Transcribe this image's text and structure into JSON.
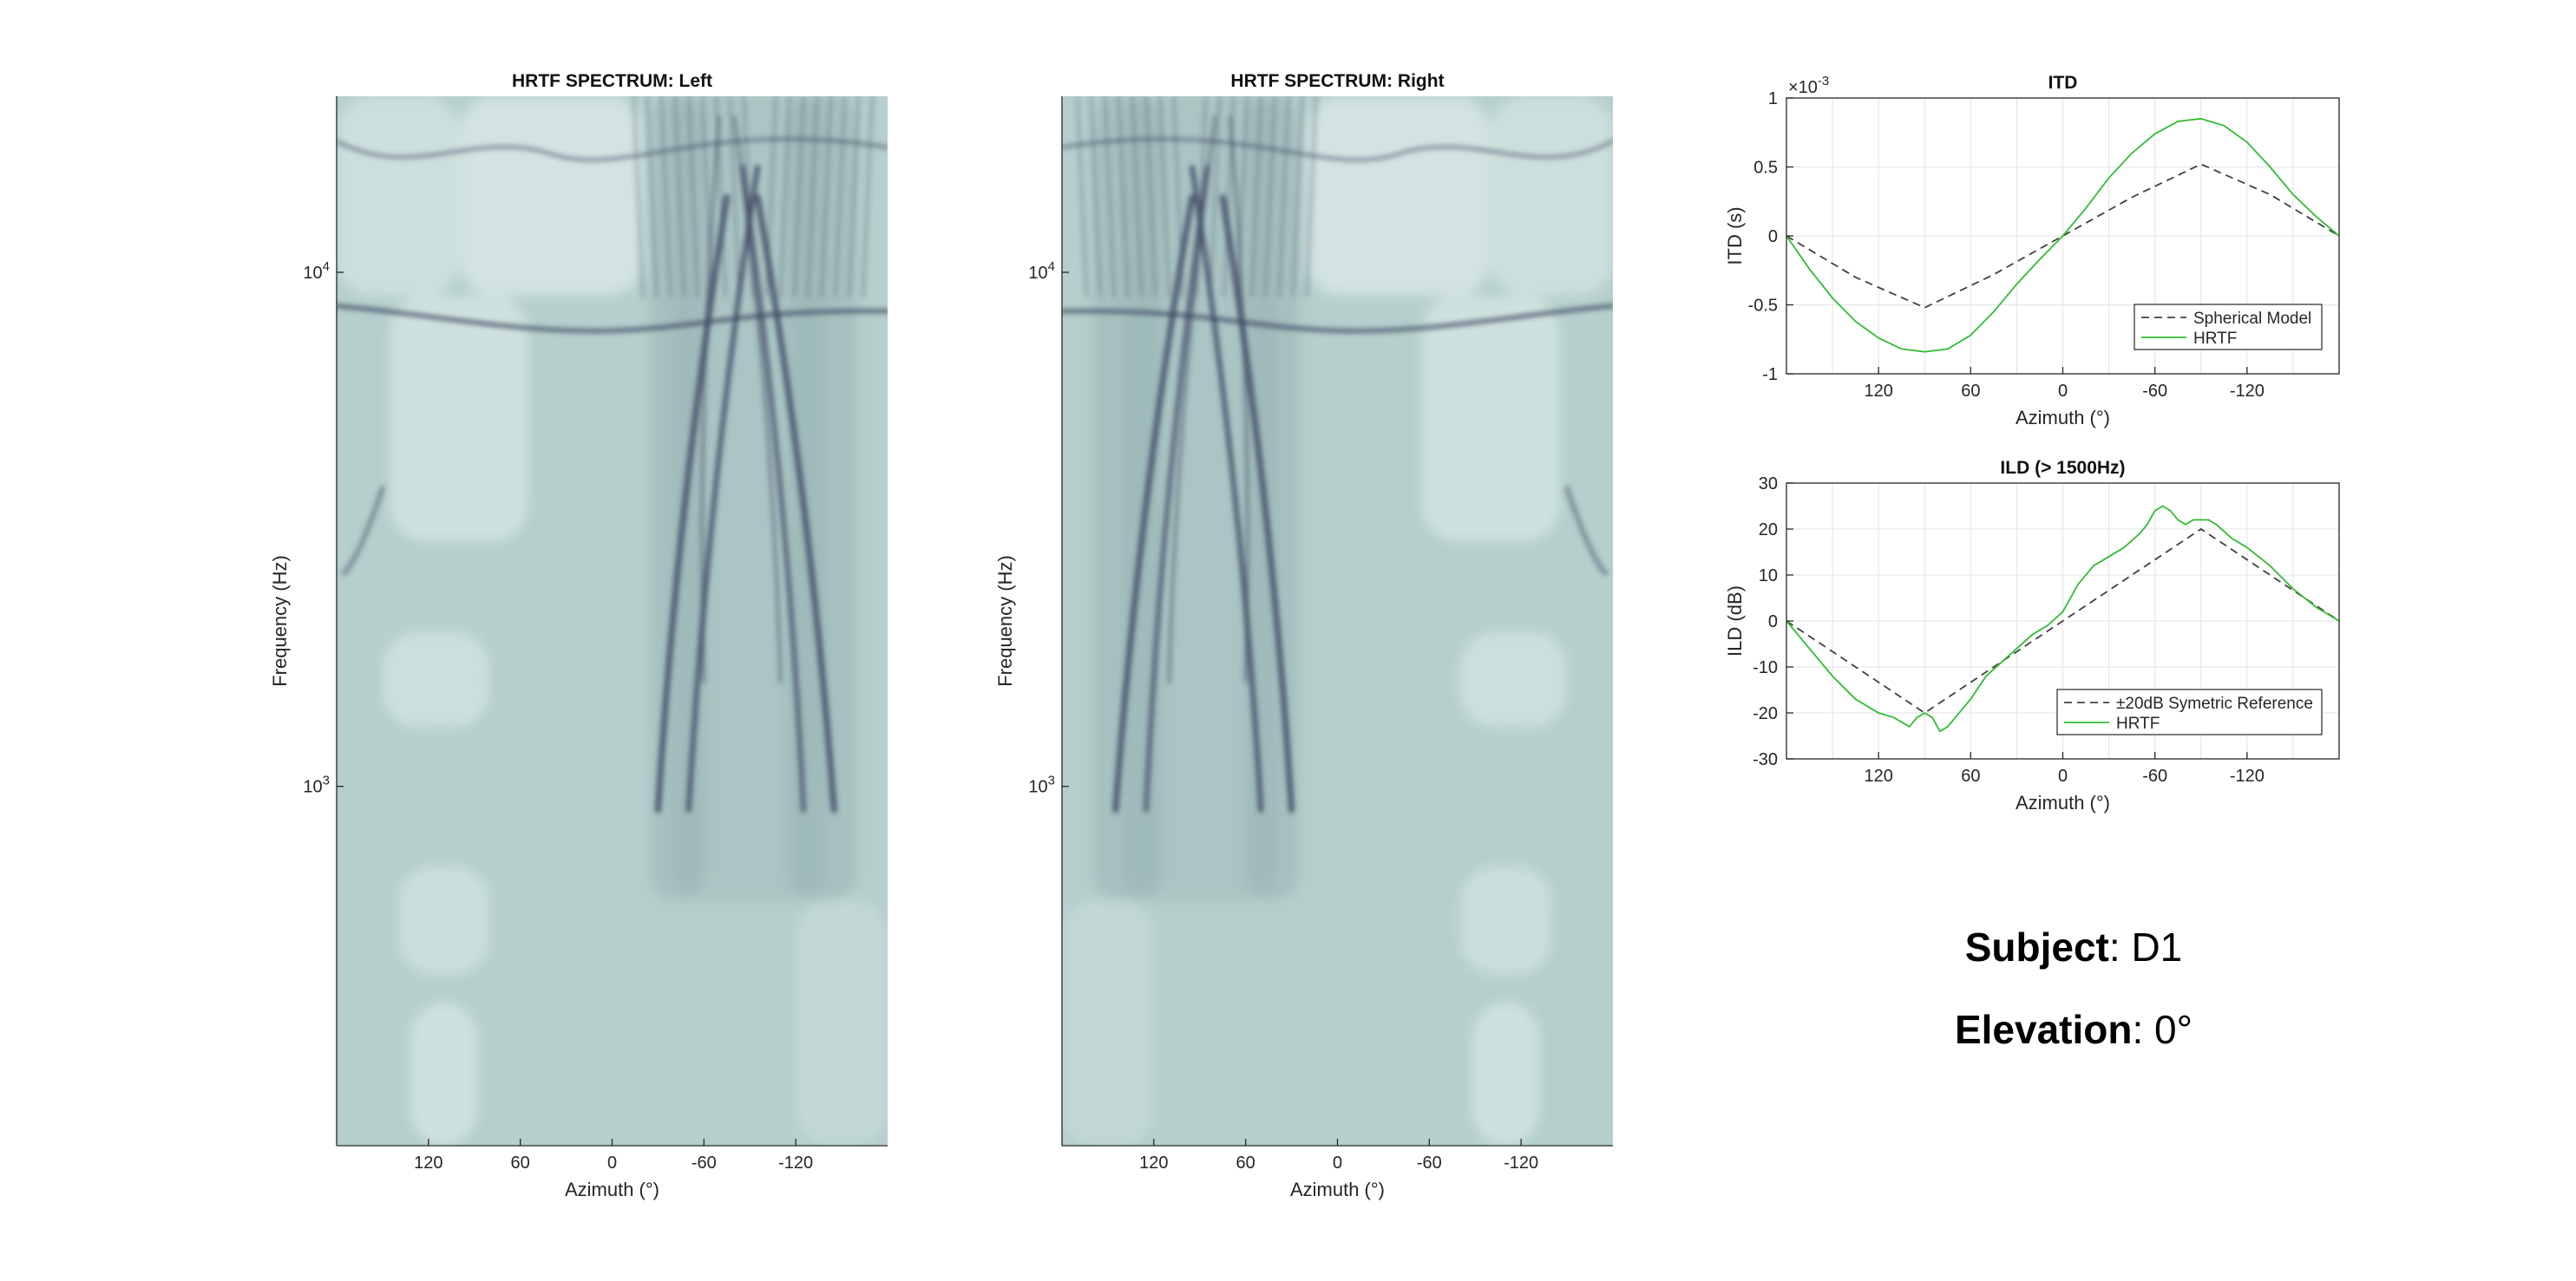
{
  "chart_data": [
    {
      "id": "spec-left",
      "type": "heatmap",
      "title": "HRTF SPECTRUM: Left",
      "xlabel": "Azimuth (°)",
      "ylabel": "Frequency (Hz)",
      "xlim": [
        180,
        -180
      ],
      "ylim": [
        200,
        22000
      ],
      "yscale": "log",
      "xticks": [
        120,
        60,
        0,
        -60,
        -120
      ],
      "xtick_labels": [
        "120",
        "60",
        "0",
        "-60",
        "-120"
      ],
      "yticks": [
        {
          "value": 1000,
          "base": "10",
          "exp": "3"
        },
        {
          "value": 10000,
          "base": "10",
          "exp": "4"
        }
      ],
      "colormap": [
        "#e6f0ee",
        "#b4cfcc",
        "#8ca6a8",
        "#3c4560"
      ],
      "ear": "left"
    },
    {
      "id": "spec-right",
      "type": "heatmap",
      "title": "HRTF SPECTRUM: Right",
      "xlabel": "Azimuth (°)",
      "ylabel": "Frequency (Hz)",
      "xlim": [
        180,
        -180
      ],
      "ylim": [
        200,
        22000
      ],
      "yscale": "log",
      "xticks": [
        120,
        60,
        0,
        -60,
        -120
      ],
      "xtick_labels": [
        "120",
        "60",
        "0",
        "-60",
        "-120"
      ],
      "yticks": [
        {
          "value": 1000,
          "base": "10",
          "exp": "3"
        },
        {
          "value": 10000,
          "base": "10",
          "exp": "4"
        }
      ],
      "colormap": [
        "#e6f0ee",
        "#b4cfcc",
        "#8ca6a8",
        "#3c4560"
      ],
      "ear": "right"
    },
    {
      "id": "itd",
      "type": "line",
      "title": "ITD",
      "xlabel": "Azimuth (°)",
      "ylabel": "ITD (s)",
      "xlim": [
        180,
        -180
      ],
      "ylim": [
        -1,
        1
      ],
      "y_multiplier": {
        "base": "10",
        "exp": "-3"
      },
      "xticks": [
        120,
        60,
        0,
        -60,
        -120
      ],
      "xtick_labels": [
        "120",
        "60",
        "0",
        "-60",
        "-120"
      ],
      "yticks": [
        -1,
        -0.5,
        0,
        0.5,
        1
      ],
      "ytick_labels": [
        "-1",
        "-0.5",
        "0",
        "0.5",
        "1"
      ],
      "grid": true,
      "legend": "bottom-right",
      "series": [
        {
          "name": "Spherical Model",
          "color": "#404040",
          "dash": true,
          "x": [
            180,
            135,
            90,
            45,
            0,
            -45,
            -90,
            -135,
            -180
          ],
          "y": [
            0,
            -0.3,
            -0.52,
            -0.28,
            0,
            0.28,
            0.52,
            0.3,
            0
          ]
        },
        {
          "name": "HRTF",
          "color": "#33bb33",
          "dash": false,
          "x": [
            180,
            165,
            150,
            135,
            120,
            105,
            90,
            75,
            60,
            45,
            30,
            15,
            0,
            -15,
            -30,
            -45,
            -60,
            -75,
            -90,
            -105,
            -120,
            -135,
            -150,
            -165,
            -180
          ],
          "y": [
            0,
            -0.24,
            -0.45,
            -0.62,
            -0.74,
            -0.82,
            -0.84,
            -0.82,
            -0.72,
            -0.55,
            -0.35,
            -0.17,
            0,
            0.2,
            0.42,
            0.6,
            0.74,
            0.83,
            0.85,
            0.8,
            0.68,
            0.5,
            0.3,
            0.14,
            0
          ]
        }
      ]
    },
    {
      "id": "ild",
      "type": "line",
      "title": "ILD (> 1500Hz)",
      "xlabel": "Azimuth (°)",
      "ylabel": "ILD (dB)",
      "xlim": [
        180,
        -180
      ],
      "ylim": [
        -30,
        30
      ],
      "xticks": [
        120,
        60,
        0,
        -60,
        -120
      ],
      "xtick_labels": [
        "120",
        "60",
        "0",
        "-60",
        "-120"
      ],
      "yticks": [
        -30,
        -20,
        -10,
        0,
        10,
        20,
        30
      ],
      "ytick_labels": [
        "-30",
        "-20",
        "-10",
        "0",
        "10",
        "20",
        "30"
      ],
      "grid": true,
      "legend": "bottom-right",
      "series": [
        {
          "name": "±20dB Symetric Reference",
          "color": "#404040",
          "dash": true,
          "x": [
            180,
            90,
            0,
            -90,
            -180
          ],
          "y": [
            0,
            -20,
            0,
            20,
            0
          ]
        },
        {
          "name": "HRTF",
          "color": "#33bb33",
          "dash": false,
          "x": [
            180,
            165,
            150,
            135,
            120,
            110,
            100,
            95,
            90,
            85,
            80,
            75,
            70,
            60,
            50,
            40,
            30,
            20,
            10,
            0,
            -10,
            -20,
            -30,
            -40,
            -50,
            -55,
            -60,
            -65,
            -70,
            -75,
            -80,
            -85,
            -90,
            -95,
            -100,
            -110,
            -120,
            -135,
            -150,
            -165,
            -180
          ],
          "y": [
            0,
            -6,
            -12,
            -17,
            -20,
            -21,
            -23,
            -21,
            -20,
            -21,
            -24,
            -23,
            -21,
            -17,
            -12,
            -9,
            -6,
            -3,
            -1,
            2,
            8,
            12,
            14,
            16,
            19,
            21,
            24,
            25,
            24,
            22,
            21,
            22,
            22,
            22,
            21,
            18,
            16,
            12,
            7,
            3,
            0
          ]
        }
      ]
    }
  ],
  "info": {
    "subject_label": "Subject",
    "subject_value": ": D1",
    "elevation_label": "Elevation",
    "elevation_value": ": 0°"
  }
}
